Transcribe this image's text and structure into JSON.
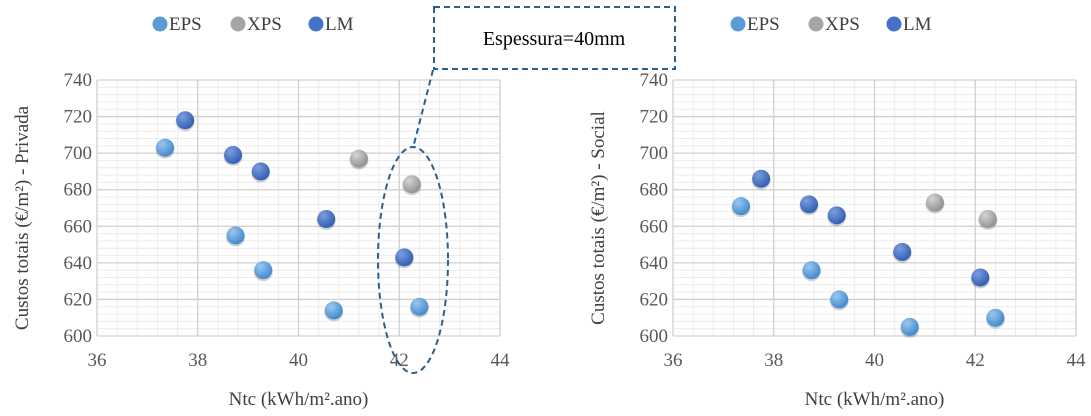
{
  "colors": {
    "EPS": "#5b9bd5",
    "XPS": "#a5a5a5",
    "LM": "#4472c4",
    "grid_major": "#d0d0d0",
    "grid_minor": "#ececec",
    "annotation": "#2e5f8a"
  },
  "annotation": {
    "text": "Espessura=40mm"
  },
  "chart_data": [
    {
      "type": "scatter",
      "xlabel": "Ntc (kWh/m².ano)",
      "ylabel": "Custos totais (€/m²) - Privada",
      "xlim": [
        36,
        44
      ],
      "ylim": [
        600,
        740
      ],
      "xticks": [
        "36",
        "38",
        "40",
        "42",
        "44"
      ],
      "yticks": [
        "600",
        "620",
        "640",
        "660",
        "680",
        "700",
        "720",
        "740"
      ],
      "grid": true,
      "legend": "top",
      "series": [
        {
          "name": "EPS",
          "points": [
            [
              37.35,
              703
            ],
            [
              38.75,
              655
            ],
            [
              39.3,
              636
            ],
            [
              40.7,
              614
            ],
            [
              42.4,
              616
            ]
          ]
        },
        {
          "name": "XPS",
          "points": [
            [
              41.2,
              697
            ],
            [
              42.25,
              683
            ]
          ]
        },
        {
          "name": "LM",
          "points": [
            [
              37.75,
              718
            ],
            [
              38.7,
              699
            ],
            [
              39.25,
              690
            ],
            [
              40.55,
              664
            ],
            [
              42.1,
              643
            ]
          ]
        }
      ]
    },
    {
      "type": "scatter",
      "xlabel": "Ntc (kWh/m².ano)",
      "ylabel": "Custos totais (€/m²) - Social",
      "xlim": [
        36,
        44
      ],
      "ylim": [
        600,
        740
      ],
      "xticks": [
        "36",
        "38",
        "40",
        "42",
        "44"
      ],
      "yticks": [
        "600",
        "620",
        "640",
        "660",
        "680",
        "700",
        "720",
        "740"
      ],
      "grid": true,
      "legend": "top",
      "series": [
        {
          "name": "EPS",
          "points": [
            [
              37.35,
              671
            ],
            [
              38.75,
              636
            ],
            [
              39.3,
              620
            ],
            [
              40.7,
              605
            ],
            [
              42.4,
              610
            ]
          ]
        },
        {
          "name": "XPS",
          "points": [
            [
              41.2,
              673
            ],
            [
              42.25,
              664
            ]
          ]
        },
        {
          "name": "LM",
          "points": [
            [
              37.75,
              686
            ],
            [
              38.7,
              672
            ],
            [
              39.25,
              666
            ],
            [
              40.55,
              646
            ],
            [
              42.1,
              632
            ]
          ]
        }
      ]
    }
  ]
}
